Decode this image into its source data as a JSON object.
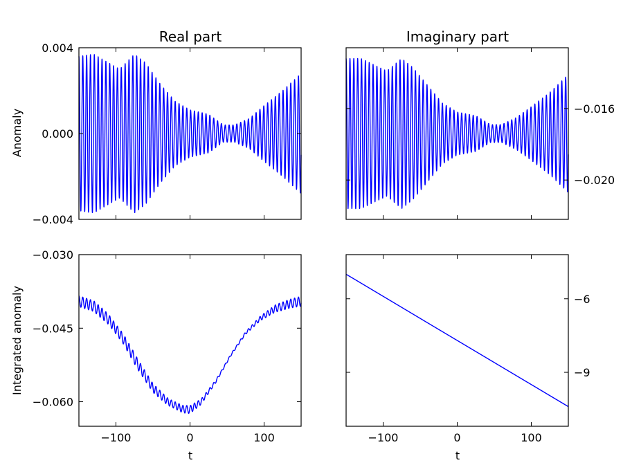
{
  "chart_data": [
    {
      "type": "line",
      "id": "real-anomaly",
      "title": "Real part",
      "xlabel": "",
      "ylabel": "Anomaly",
      "xlim": [
        -150,
        150
      ],
      "ylim": [
        -0.004,
        0.004
      ],
      "x_ticks": [
        -100,
        0,
        100
      ],
      "x_tick_labels": [],
      "y_ticks": [
        -0.004,
        0.0,
        0.004
      ],
      "y_tick_labels": [
        "−0.004",
        "0.000",
        "0.004"
      ],
      "y_axis_side": "left",
      "series": [
        {
          "color": "#0000ff",
          "kind": "oscillation",
          "period": 5.2,
          "center": 0.0,
          "envelope": [
            [
              -150,
              0.0036
            ],
            [
              -130,
              0.0037
            ],
            [
              -110,
              0.0033
            ],
            [
              -95,
              0.003
            ],
            [
              -75,
              0.0037
            ],
            [
              -60,
              0.0033
            ],
            [
              -40,
              0.0023
            ],
            [
              -20,
              0.0015
            ],
            [
              0,
              0.0011
            ],
            [
              25,
              0.0009
            ],
            [
              45,
              0.0004
            ],
            [
              60,
              0.0004
            ],
            [
              80,
              0.0007
            ],
            [
              100,
              0.0013
            ],
            [
              125,
              0.002
            ],
            [
              150,
              0.0028
            ]
          ]
        }
      ]
    },
    {
      "type": "line",
      "id": "imag-anomaly",
      "title": "Imaginary part",
      "xlabel": "",
      "ylabel": "",
      "xlim": [
        -150,
        150
      ],
      "ylim": [
        -0.0222,
        -0.0126
      ],
      "x_ticks": [
        -100,
        0,
        100
      ],
      "x_tick_labels": [],
      "y_ticks": [
        -0.016,
        -0.02
      ],
      "y_tick_labels": [
        "−0.016",
        "−0.020"
      ],
      "y_axis_side": "right",
      "series": [
        {
          "color": "#0000ff",
          "kind": "oscillation",
          "period": 5.2,
          "center": -0.0174,
          "envelope": [
            [
              -150,
              0.0042
            ],
            [
              -130,
              0.0042
            ],
            [
              -110,
              0.0038
            ],
            [
              -95,
              0.0035
            ],
            [
              -75,
              0.0042
            ],
            [
              -60,
              0.0037
            ],
            [
              -40,
              0.0027
            ],
            [
              -20,
              0.0017
            ],
            [
              0,
              0.0012
            ],
            [
              25,
              0.001
            ],
            [
              45,
              0.0005
            ],
            [
              60,
              0.0005
            ],
            [
              80,
              0.0009
            ],
            [
              100,
              0.0015
            ],
            [
              125,
              0.0023
            ],
            [
              150,
              0.0033
            ]
          ]
        }
      ]
    },
    {
      "type": "line",
      "id": "real-integrated",
      "title": "",
      "xlabel": "t",
      "ylabel": "Integrated anomaly",
      "xlim": [
        -150,
        150
      ],
      "ylim": [
        -0.065,
        -0.03
      ],
      "x_ticks": [
        -100,
        0,
        100
      ],
      "x_tick_labels": [
        "−100",
        "0",
        "100"
      ],
      "y_ticks": [
        -0.03,
        -0.045,
        -0.06
      ],
      "y_tick_labels": [
        "−0.030",
        "−0.045",
        "−0.060"
      ],
      "y_axis_side": "left",
      "series": [
        {
          "color": "#0000ff",
          "kind": "oscillation-trend",
          "period": 5.2,
          "trend": [
            [
              -150,
              -0.0395
            ],
            [
              -130,
              -0.0405
            ],
            [
              -110,
              -0.0432
            ],
            [
              -90,
              -0.0472
            ],
            [
              -70,
              -0.0525
            ],
            [
              -50,
              -0.0572
            ],
            [
              -30,
              -0.06
            ],
            [
              -10,
              -0.0615
            ],
            [
              0,
              -0.0616
            ],
            [
              15,
              -0.06
            ],
            [
              35,
              -0.0558
            ],
            [
              55,
              -0.0505
            ],
            [
              75,
              -0.046
            ],
            [
              95,
              -0.043
            ],
            [
              115,
              -0.041
            ],
            [
              135,
              -0.04
            ],
            [
              150,
              -0.0395
            ]
          ],
          "envelope": [
            [
              -150,
              0.0011
            ],
            [
              -120,
              0.0011
            ],
            [
              -100,
              0.001
            ],
            [
              -75,
              0.0011
            ],
            [
              -50,
              0.0009
            ],
            [
              -25,
              0.0007
            ],
            [
              0,
              0.0008
            ],
            [
              25,
              0.0004
            ],
            [
              45,
              0.0002
            ],
            [
              65,
              0.0002
            ],
            [
              90,
              0.0004
            ],
            [
              120,
              0.0008
            ],
            [
              150,
              0.001
            ]
          ]
        }
      ]
    },
    {
      "type": "line",
      "id": "imag-integrated",
      "title": "",
      "xlabel": "t",
      "ylabel": "",
      "xlim": [
        -150,
        150
      ],
      "ylim": [
        -11.2,
        -4.2
      ],
      "x_ticks": [
        -100,
        0,
        100
      ],
      "x_tick_labels": [
        "−100",
        "0",
        "100"
      ],
      "y_ticks": [
        -6,
        -9
      ],
      "y_tick_labels": [
        "−6",
        "−9"
      ],
      "y_axis_side": "right",
      "series": [
        {
          "color": "#0000ff",
          "kind": "linear",
          "points": [
            [
              -150,
              -5.0
            ],
            [
              150,
              -10.4
            ]
          ]
        }
      ]
    }
  ]
}
